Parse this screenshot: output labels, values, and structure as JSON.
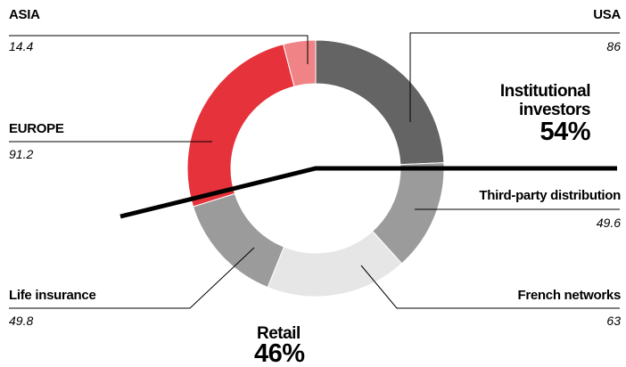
{
  "chart_data": {
    "type": "donut",
    "categories": [
      "USA",
      "Third-party distribution",
      "French networks",
      "Life insurance",
      "EUROPE",
      "ASIA"
    ],
    "values": [
      86,
      49.6,
      63,
      49.8,
      91.2,
      14.4
    ],
    "colors": [
      "#646464",
      "#9b9b9b",
      "#e6e6e6",
      "#9b9b9b",
      "#e5323b",
      "#f08386"
    ],
    "groups": [
      {
        "name": "Institutional investors",
        "value": 54,
        "value_label": "54%"
      },
      {
        "name": "Retail",
        "value": 46,
        "value_label": "46%"
      }
    ]
  }
}
